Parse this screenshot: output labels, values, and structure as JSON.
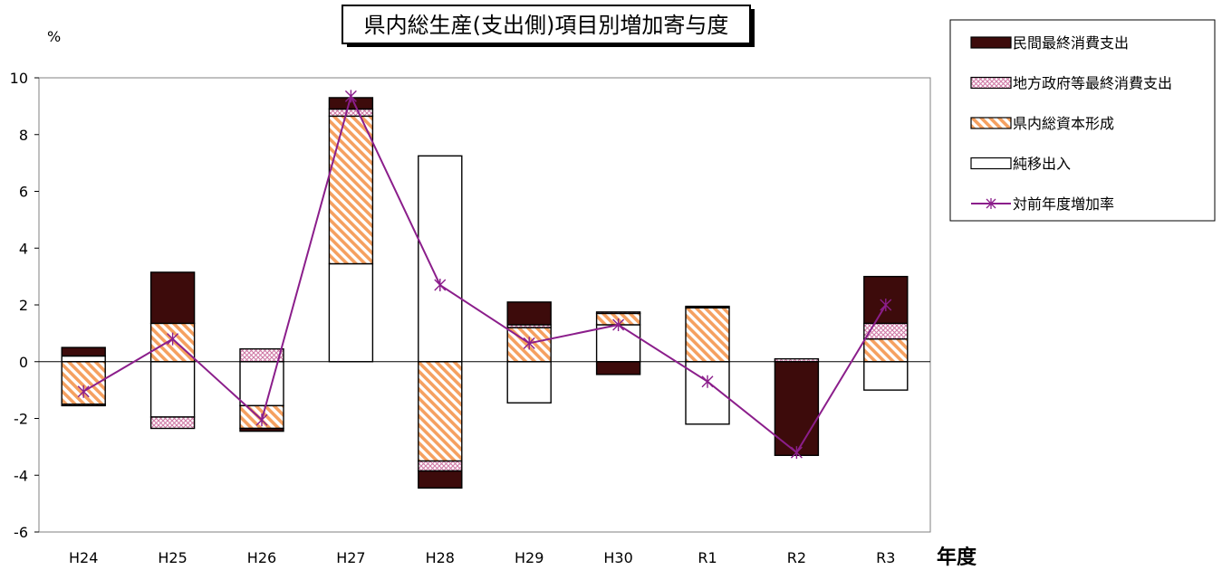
{
  "chart_data": {
    "type": "bar",
    "title": "県内総生産(支出側)項目別増加寄与度",
    "ylabel": "%",
    "xlabel": "年度",
    "ylim": [
      -6,
      10
    ],
    "yticks": [
      -6,
      -4,
      -2,
      0,
      2,
      4,
      6,
      8,
      10
    ],
    "categories": [
      "H24",
      "H25",
      "H26",
      "H27",
      "H28",
      "H29",
      "H30",
      "R1",
      "R2",
      "R3"
    ],
    "series": [
      {
        "name": "民間最終消費支出",
        "kind": "bar",
        "pattern": "solid-dark",
        "values": [
          0.3,
          1.8,
          -0.1,
          0.4,
          -0.6,
          0.8,
          -0.45,
          0.05,
          -3.3,
          1.65
        ]
      },
      {
        "name": "地方政府等最終消費支出",
        "kind": "bar",
        "pattern": "pink-crosshatch",
        "values": [
          -0.05,
          -0.4,
          0.45,
          0.25,
          -0.35,
          0.1,
          0.05,
          0.0,
          0.1,
          0.55
        ]
      },
      {
        "name": "県内総資本形成",
        "kind": "bar",
        "pattern": "orange-diagonal",
        "values": [
          -1.5,
          1.35,
          -0.8,
          5.2,
          -3.5,
          1.2,
          0.4,
          1.9,
          0.0,
          0.8
        ]
      },
      {
        "name": "純移出入",
        "kind": "bar",
        "pattern": "white",
        "values": [
          0.2,
          -1.95,
          -1.55,
          3.45,
          7.25,
          -1.45,
          1.3,
          -2.2,
          0.0,
          -1.0
        ]
      },
      {
        "name": "対前年度増加率",
        "kind": "line",
        "marker": "asterisk",
        "values": [
          -1.05,
          0.8,
          -2.05,
          9.35,
          2.7,
          0.65,
          1.3,
          -0.7,
          -3.2,
          2.0
        ]
      }
    ],
    "colors": {
      "solid-dark": "#3d0b0b",
      "pink-crosshatch": "#e8a8c8",
      "orange-diagonal": "#f5a060",
      "white": "#ffffff",
      "line": "#8b1e8b"
    },
    "legend_position": "right",
    "grid": false
  }
}
